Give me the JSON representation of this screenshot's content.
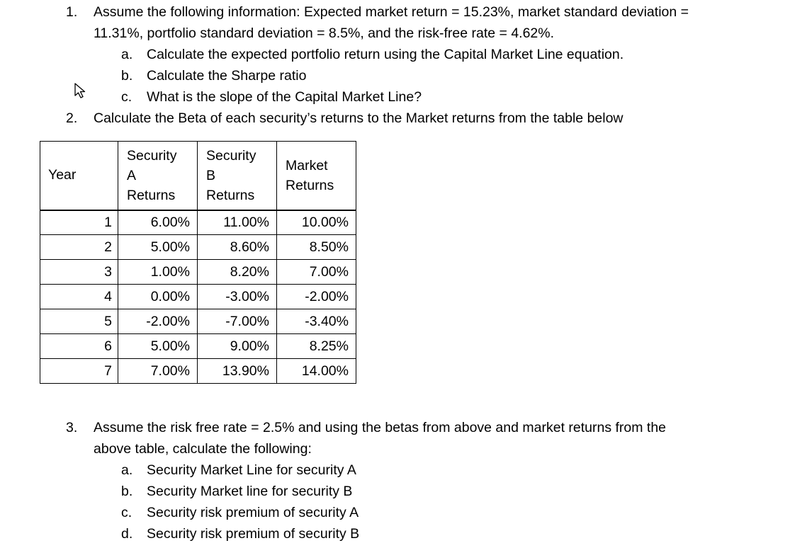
{
  "q1": {
    "num": "1.",
    "line1": "Assume the following information: Expected market return = 15.23%, market standard deviation =",
    "line2": "11.31%, portfolio standard deviation = 8.5%, and the risk-free rate = 4.62%.",
    "items": [
      {
        "letter": "a.",
        "text": "Calculate the expected portfolio return using the Capital Market Line equation."
      },
      {
        "letter": "b.",
        "text": "Calculate the Sharpe ratio"
      },
      {
        "letter": "c.",
        "text": "What is the slope of the Capital Market Line?"
      }
    ]
  },
  "q2": {
    "num": "2.",
    "text": "Calculate the Beta of each security’s returns to the Market returns from the table below"
  },
  "table": {
    "headers": {
      "year": "Year",
      "sec_a": [
        "Security",
        "A",
        "Returns"
      ],
      "sec_b": [
        "Security",
        "B",
        "Returns"
      ],
      "market": [
        "Market",
        "Returns"
      ]
    },
    "rows": [
      {
        "year": "1",
        "a": "6.00%",
        "b": "11.00%",
        "m": "10.00%"
      },
      {
        "year": "2",
        "a": "5.00%",
        "b": "8.60%",
        "m": "8.50%"
      },
      {
        "year": "3",
        "a": "1.00%",
        "b": "8.20%",
        "m": "7.00%"
      },
      {
        "year": "4",
        "a": "0.00%",
        "b": "-3.00%",
        "m": "-2.00%"
      },
      {
        "year": "5",
        "a": "-2.00%",
        "b": "-7.00%",
        "m": "-3.40%"
      },
      {
        "year": "6",
        "a": "5.00%",
        "b": "9.00%",
        "m": "8.25%"
      },
      {
        "year": "7",
        "a": "7.00%",
        "b": "13.90%",
        "m": "14.00%"
      }
    ]
  },
  "q3": {
    "num": "3.",
    "line1": "Assume the risk free rate = 2.5% and using the betas from above and market returns from the",
    "line2": "above table, calculate the following:",
    "items": [
      {
        "letter": "a.",
        "text": "Security Market Line for security A"
      },
      {
        "letter": "b.",
        "text": "Security Market line for security B"
      },
      {
        "letter": "c.",
        "text": "Security risk premium of security A"
      },
      {
        "letter": "d.",
        "text": "Security risk premium of security B"
      }
    ]
  },
  "icons": {
    "cursor": "mouse-pointer-icon"
  }
}
